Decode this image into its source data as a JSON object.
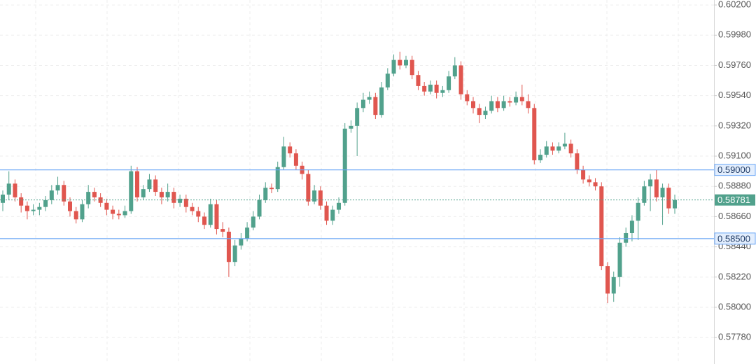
{
  "chart_data": {
    "type": "candlestick",
    "up_color": "#51a18c",
    "down_color": "#e0564f",
    "level_color": "#6aa6f6",
    "grid": true,
    "ylim": [
      0.575875,
      0.60236
    ],
    "yticks": [
      {
        "value": 0.602,
        "label": "0.60200"
      },
      {
        "value": 0.5998,
        "label": "0.59980"
      },
      {
        "value": 0.5976,
        "label": "0.59760"
      },
      {
        "value": 0.5954,
        "label": "0.59540"
      },
      {
        "value": 0.5932,
        "label": "0.59320"
      },
      {
        "value": 0.591,
        "label": "0.59100"
      },
      {
        "value": 0.5888,
        "label": "0.58880"
      },
      {
        "value": 0.5866,
        "label": "0.58660"
      },
      {
        "value": 0.5844,
        "label": "0.58440"
      },
      {
        "value": 0.5822,
        "label": "0.58220"
      },
      {
        "value": 0.58,
        "label": "0.58000"
      },
      {
        "value": 0.5778,
        "label": "0.57780"
      }
    ],
    "levels": [
      {
        "value": 0.59,
        "label": "0.59000"
      },
      {
        "value": 0.585,
        "label": "0.58500"
      }
    ],
    "current": {
      "value": 0.58781,
      "label": "0.58781"
    },
    "candles": [
      [
        0.5876,
        0.5885,
        0.587,
        0.5882
      ],
      [
        0.5882,
        0.5899,
        0.5878,
        0.589
      ],
      [
        0.589,
        0.5893,
        0.5877,
        0.588
      ],
      [
        0.588,
        0.5883,
        0.5869,
        0.5874
      ],
      [
        0.5874,
        0.5877,
        0.5864,
        0.587
      ],
      [
        0.587,
        0.5875,
        0.5867,
        0.5871
      ],
      [
        0.5871,
        0.5876,
        0.5867,
        0.5873
      ],
      [
        0.5873,
        0.5881,
        0.587,
        0.5878
      ],
      [
        0.5878,
        0.5889,
        0.5875,
        0.5885
      ],
      [
        0.5885,
        0.5895,
        0.5882,
        0.5889
      ],
      [
        0.5889,
        0.5892,
        0.5874,
        0.5877
      ],
      [
        0.5877,
        0.588,
        0.5866,
        0.587
      ],
      [
        0.587,
        0.5873,
        0.5861,
        0.5864
      ],
      [
        0.5864,
        0.5878,
        0.5862,
        0.5875
      ],
      [
        0.5875,
        0.5889,
        0.5872,
        0.5884
      ],
      [
        0.5884,
        0.5887,
        0.5877,
        0.588
      ],
      [
        0.588,
        0.5883,
        0.5873,
        0.5876
      ],
      [
        0.5876,
        0.5879,
        0.5867,
        0.5871
      ],
      [
        0.5871,
        0.5874,
        0.5864,
        0.5868
      ],
      [
        0.5868,
        0.5871,
        0.5864,
        0.5867
      ],
      [
        0.5867,
        0.5874,
        0.5865,
        0.587
      ],
      [
        0.587,
        0.5903,
        0.5868,
        0.5899
      ],
      [
        0.5899,
        0.5902,
        0.5877,
        0.588
      ],
      [
        0.588,
        0.5889,
        0.5878,
        0.5886
      ],
      [
        0.5886,
        0.5897,
        0.5884,
        0.5893
      ],
      [
        0.5893,
        0.5896,
        0.5881,
        0.5884
      ],
      [
        0.5884,
        0.5887,
        0.5875,
        0.588
      ],
      [
        0.588,
        0.589,
        0.5877,
        0.5884
      ],
      [
        0.5884,
        0.5887,
        0.5872,
        0.5876
      ],
      [
        0.5876,
        0.5882,
        0.5873,
        0.5879
      ],
      [
        0.5879,
        0.5882,
        0.5869,
        0.5873
      ],
      [
        0.5873,
        0.5876,
        0.5867,
        0.587
      ],
      [
        0.587,
        0.5873,
        0.5862,
        0.5866
      ],
      [
        0.5866,
        0.5869,
        0.5857,
        0.586
      ],
      [
        0.586,
        0.5879,
        0.5858,
        0.5875
      ],
      [
        0.5875,
        0.5878,
        0.5853,
        0.5857
      ],
      [
        0.5857,
        0.5862,
        0.5851,
        0.5855
      ],
      [
        0.5855,
        0.5858,
        0.5822,
        0.5833
      ],
      [
        0.5833,
        0.5849,
        0.583,
        0.5845
      ],
      [
        0.5845,
        0.5854,
        0.5842,
        0.585
      ],
      [
        0.585,
        0.5862,
        0.5848,
        0.5858
      ],
      [
        0.5858,
        0.587,
        0.5856,
        0.5866
      ],
      [
        0.5866,
        0.5882,
        0.5864,
        0.5878
      ],
      [
        0.5878,
        0.5891,
        0.5876,
        0.5887
      ],
      [
        0.5887,
        0.589,
        0.5883,
        0.5886
      ],
      [
        0.5886,
        0.5906,
        0.5884,
        0.5902
      ],
      [
        0.5902,
        0.5924,
        0.59,
        0.5917
      ],
      [
        0.5917,
        0.592,
        0.5909,
        0.5912
      ],
      [
        0.5912,
        0.5915,
        0.59,
        0.5903
      ],
      [
        0.5903,
        0.5906,
        0.5893,
        0.5897
      ],
      [
        0.5897,
        0.59,
        0.5874,
        0.5877
      ],
      [
        0.5877,
        0.5889,
        0.5875,
        0.5885
      ],
      [
        0.5885,
        0.5888,
        0.5871,
        0.5874
      ],
      [
        0.5874,
        0.5877,
        0.586,
        0.5863
      ],
      [
        0.5863,
        0.5874,
        0.586,
        0.5871
      ],
      [
        0.5871,
        0.588,
        0.5868,
        0.5876
      ],
      [
        0.5876,
        0.5934,
        0.5874,
        0.593
      ],
      [
        0.593,
        0.5936,
        0.5927,
        0.5932
      ],
      [
        0.5932,
        0.5949,
        0.591,
        0.5945
      ],
      [
        0.5945,
        0.5956,
        0.5942,
        0.5951
      ],
      [
        0.5951,
        0.5957,
        0.5948,
        0.5953
      ],
      [
        0.5953,
        0.5956,
        0.5937,
        0.594
      ],
      [
        0.594,
        0.5964,
        0.5938,
        0.596
      ],
      [
        0.596,
        0.5974,
        0.5958,
        0.597
      ],
      [
        0.597,
        0.5984,
        0.5968,
        0.598
      ],
      [
        0.598,
        0.5986,
        0.5973,
        0.5976
      ],
      [
        0.5976,
        0.5983,
        0.5974,
        0.598
      ],
      [
        0.598,
        0.5983,
        0.5966,
        0.5969
      ],
      [
        0.5969,
        0.5972,
        0.5958,
        0.5961
      ],
      [
        0.5961,
        0.5964,
        0.5954,
        0.5957
      ],
      [
        0.5957,
        0.5965,
        0.5955,
        0.5962
      ],
      [
        0.5962,
        0.5965,
        0.5952,
        0.5956
      ],
      [
        0.5956,
        0.5961,
        0.5953,
        0.5958
      ],
      [
        0.5958,
        0.5972,
        0.5956,
        0.5968
      ],
      [
        0.5968,
        0.5982,
        0.5966,
        0.5976
      ],
      [
        0.5976,
        0.5979,
        0.5951,
        0.5955
      ],
      [
        0.5955,
        0.5958,
        0.5947,
        0.595
      ],
      [
        0.595,
        0.5953,
        0.5941,
        0.5945
      ],
      [
        0.5945,
        0.5948,
        0.5934,
        0.594
      ],
      [
        0.594,
        0.5946,
        0.5937,
        0.5943
      ],
      [
        0.5943,
        0.5954,
        0.5941,
        0.595
      ],
      [
        0.595,
        0.5953,
        0.5942,
        0.5945
      ],
      [
        0.5945,
        0.5954,
        0.5943,
        0.595
      ],
      [
        0.595,
        0.5953,
        0.5946,
        0.5949
      ],
      [
        0.5949,
        0.5957,
        0.5947,
        0.5953
      ],
      [
        0.5953,
        0.5962,
        0.5947,
        0.595
      ],
      [
        0.595,
        0.5955,
        0.5941,
        0.5945
      ],
      [
        0.5945,
        0.5948,
        0.5904,
        0.5907
      ],
      [
        0.5907,
        0.5915,
        0.5905,
        0.5911
      ],
      [
        0.5911,
        0.5921,
        0.5909,
        0.5917
      ],
      [
        0.5917,
        0.592,
        0.5911,
        0.5914
      ],
      [
        0.5914,
        0.592,
        0.5912,
        0.5917
      ],
      [
        0.5917,
        0.5927,
        0.5915,
        0.5919
      ],
      [
        0.5919,
        0.5922,
        0.5909,
        0.5912
      ],
      [
        0.5912,
        0.5915,
        0.5897,
        0.59
      ],
      [
        0.59,
        0.5903,
        0.589,
        0.5893
      ],
      [
        0.5893,
        0.5896,
        0.5888,
        0.5891
      ],
      [
        0.5891,
        0.5894,
        0.5885,
        0.5888
      ],
      [
        0.5888,
        0.5891,
        0.5827,
        0.583
      ],
      [
        0.583,
        0.5833,
        0.5803,
        0.581
      ],
      [
        0.581,
        0.5826,
        0.5804,
        0.5822
      ],
      [
        0.5822,
        0.5851,
        0.5815,
        0.5847
      ],
      [
        0.5847,
        0.5858,
        0.5844,
        0.5854
      ],
      [
        0.5854,
        0.5867,
        0.5848,
        0.5863
      ],
      [
        0.5863,
        0.588,
        0.5849,
        0.5876
      ],
      [
        0.5876,
        0.5892,
        0.5874,
        0.5888
      ],
      [
        0.5888,
        0.5897,
        0.587,
        0.5893
      ],
      [
        0.5893,
        0.59,
        0.5877,
        0.588
      ],
      [
        0.588,
        0.589,
        0.586,
        0.5887
      ],
      [
        0.5887,
        0.589,
        0.5868,
        0.5872
      ],
      [
        0.5872,
        0.5882,
        0.5868,
        0.58781
      ]
    ]
  }
}
